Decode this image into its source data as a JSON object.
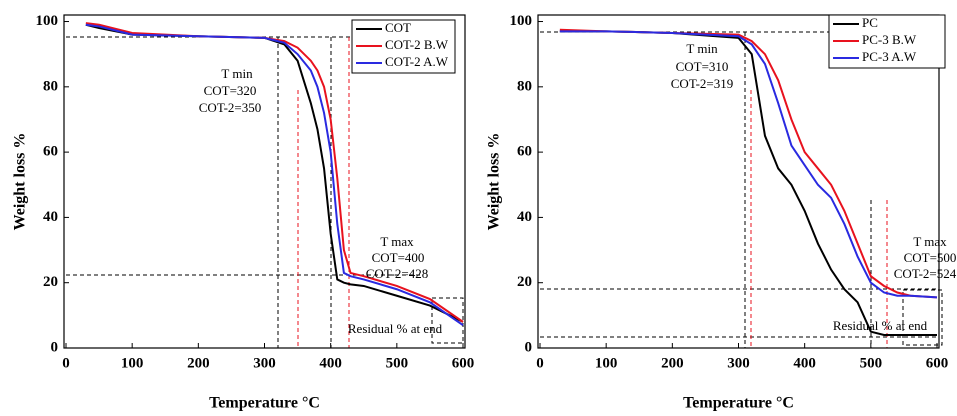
{
  "chart_data": [
    {
      "type": "line",
      "x_label": "Temperature °C",
      "y_label": "Weight loss %",
      "x": [
        30,
        50,
        100,
        200,
        300,
        330,
        350,
        370,
        380,
        390,
        400,
        410,
        420,
        430,
        450,
        500,
        550,
        600
      ],
      "series": [
        {
          "name": "COT",
          "color": "#000000",
          "values": [
            99,
            98,
            96,
            95.5,
            95,
            93,
            88,
            75,
            67,
            55,
            35,
            21,
            20,
            19.5,
            19,
            16,
            13,
            8
          ]
        },
        {
          "name": "COT-2 B.W",
          "color": "#e8121e",
          "values": [
            99.5,
            99,
            96.5,
            95.5,
            95,
            94,
            92,
            88,
            85,
            80,
            70,
            52,
            30,
            23,
            22,
            19,
            15,
            8
          ]
        },
        {
          "name": "COT-2 A.W",
          "color": "#2a2ae0",
          "values": [
            99,
            98.5,
            96,
            95.5,
            95,
            93.5,
            90,
            85,
            80,
            72,
            60,
            38,
            23,
            22,
            21,
            18,
            14,
            7
          ]
        }
      ],
      "annotations": [
        "T min",
        "COT=320",
        "COT-2=350",
        "T max",
        "COT=400",
        "COT-2=428",
        "Residual  % at end"
      ],
      "xlim": [
        0,
        600
      ],
      "xticks": [
        0,
        100,
        200,
        300,
        400,
        500,
        600
      ],
      "ylim": [
        0,
        102
      ],
      "yticks": [
        0,
        20,
        40,
        60,
        80,
        100
      ],
      "legend": "upper right"
    },
    {
      "type": "line",
      "x_label": "Temperature °C",
      "y_label": "Weight loss %",
      "x": [
        30,
        100,
        200,
        300,
        320,
        340,
        360,
        380,
        400,
        420,
        440,
        460,
        480,
        500,
        520,
        540,
        560,
        600
      ],
      "series": [
        {
          "name": "PC",
          "color": "#000000",
          "values": [
            97,
            97,
            96.5,
            95,
            90,
            65,
            55,
            50,
            42,
            32,
            24,
            18,
            14,
            5,
            4,
            4,
            4,
            4
          ]
        },
        {
          "name": "PC-3 B.W",
          "color": "#e8121e",
          "values": [
            97.5,
            97,
            96.5,
            96,
            94,
            90,
            82,
            70,
            60,
            55,
            50,
            42,
            32,
            22,
            19,
            17,
            16,
            15.5
          ]
        },
        {
          "name": "PC-3 A.W",
          "color": "#2a2ae0",
          "values": [
            97,
            97,
            96.5,
            95.5,
            93,
            87,
            75,
            62,
            56,
            50,
            46,
            38,
            28,
            20,
            17,
            16,
            16,
            15.5
          ]
        }
      ],
      "annotations": [
        "T min",
        "COT=310",
        "COT-2=319",
        "T max",
        "COT=500",
        "COT-2=524",
        "Residual % at end"
      ],
      "xlim": [
        0,
        600
      ],
      "xticks": [
        0,
        100,
        200,
        300,
        400,
        500,
        600
      ],
      "ylim": [
        0,
        102
      ],
      "yticks": [
        0,
        20,
        40,
        60,
        80,
        100
      ],
      "legend": "upper right"
    }
  ]
}
